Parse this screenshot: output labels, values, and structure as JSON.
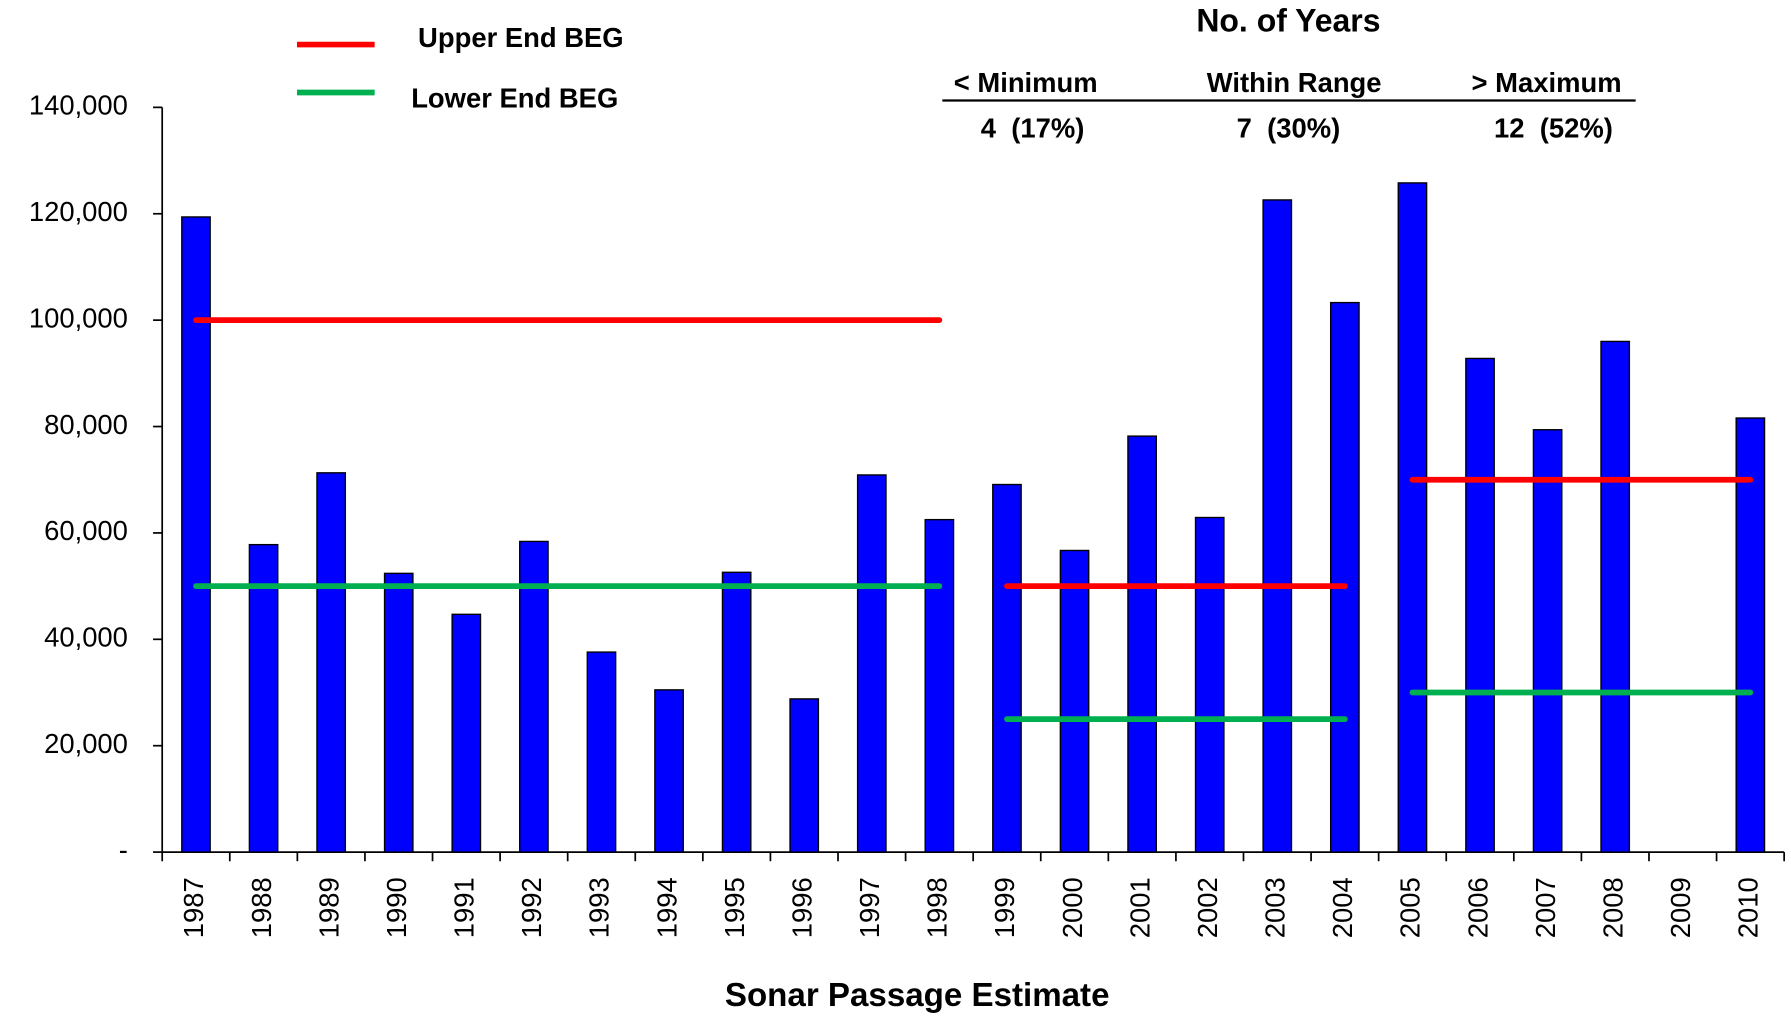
{
  "chart_data": {
    "type": "bar",
    "x_label": "Sonar Passage Estimate",
    "categories": [
      "1987",
      "1988",
      "1989",
      "1990",
      "1991",
      "1992",
      "1993",
      "1994",
      "1995",
      "1996",
      "1997",
      "1998",
      "1999",
      "2000",
      "2001",
      "2002",
      "2003",
      "2004",
      "2005",
      "2006",
      "2007",
      "2008",
      "2009",
      "2010"
    ],
    "values": [
      119400,
      57800,
      71300,
      52400,
      44700,
      58400,
      37600,
      30500,
      52600,
      28800,
      70900,
      62500,
      69100,
      56700,
      78200,
      62900,
      122600,
      103300,
      125800,
      92800,
      79400,
      96000,
      null,
      81600
    ],
    "color": "#0000ff",
    "ylim": [
      0,
      140000
    ],
    "yticks": [
      {
        "value": 0,
        "label": "-"
      },
      {
        "value": 20000,
        "label": "20,000"
      },
      {
        "value": 40000,
        "label": "40,000"
      },
      {
        "value": 60000,
        "label": "60,000"
      },
      {
        "value": 80000,
        "label": "80,000"
      },
      {
        "value": 100000,
        "label": "100,000"
      },
      {
        "value": 120000,
        "label": "120,000"
      },
      {
        "value": 140000,
        "label": "140,000"
      }
    ],
    "goal_lines": [
      {
        "name": "Upper End BEG",
        "color": "#ff0000",
        "segments": [
          {
            "start": "1987",
            "end": "1998",
            "value": 100000
          },
          {
            "start": "1999",
            "end": "2004",
            "value": 50000
          },
          {
            "start": "2005",
            "end": "2010",
            "value": 70000
          }
        ]
      },
      {
        "name": "Lower End BEG",
        "color": "#00b050",
        "segments": [
          {
            "start": "1987",
            "end": "1998",
            "value": 50000
          },
          {
            "start": "1999",
            "end": "2004",
            "value": 25000
          },
          {
            "start": "2005",
            "end": "2010",
            "value": 30000
          }
        ]
      }
    ],
    "summary": {
      "title": "No. of Years",
      "columns": [
        {
          "header": "< Minimum",
          "count": "4  (17%)"
        },
        {
          "header": "Within Range",
          "count": "7  (30%)"
        },
        {
          "header": "> Maximum",
          "count": "12  (52%)"
        }
      ]
    }
  }
}
